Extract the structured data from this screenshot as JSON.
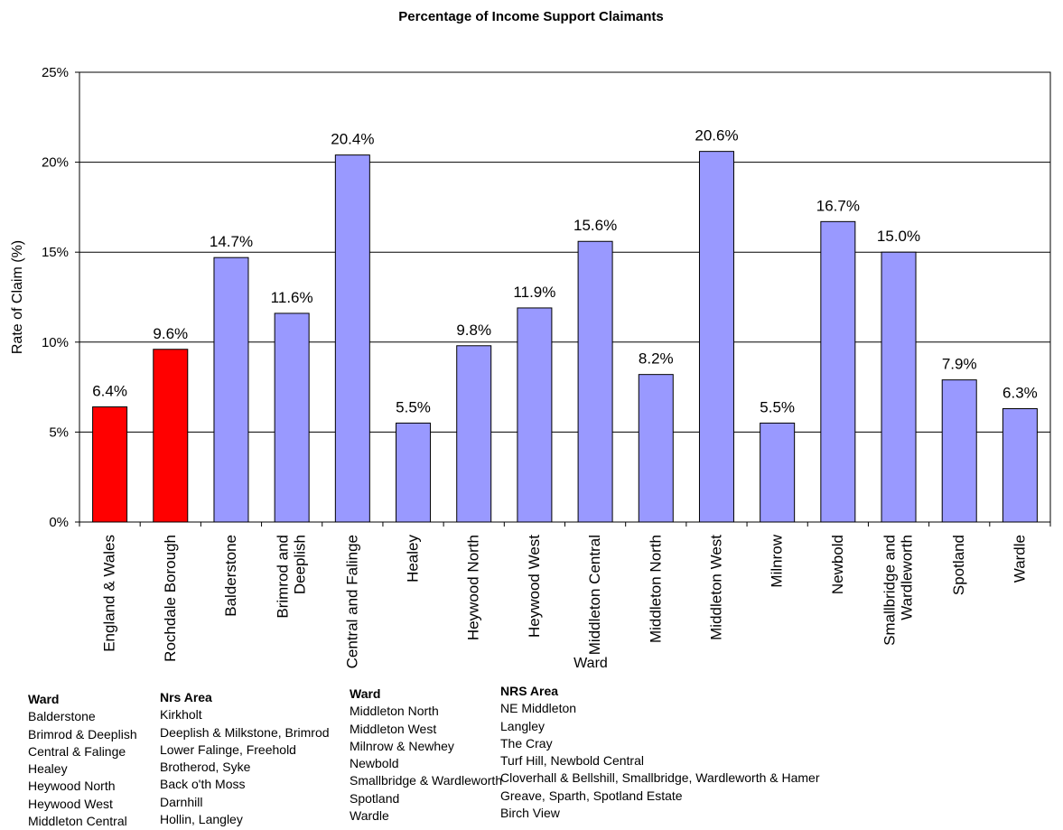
{
  "chart_data": {
    "type": "bar",
    "title": "Percentage of Income Support Claimants",
    "xlabel": "Ward",
    "ylabel": "Rate of Claim (%)",
    "ylim": [
      0,
      25
    ],
    "yticks": [
      "0%",
      "5%",
      "10%",
      "15%",
      "20%",
      "25%"
    ],
    "grid": true,
    "categories": [
      "England & Wales",
      "Rochdale Borough",
      "Balderstone",
      "Brimrod and Deeplish",
      "Central and Falinge",
      "Healey",
      "Heywood North",
      "Heywood West",
      "Middleton Central",
      "Middleton North",
      "Middleton West",
      "Milnrow",
      "Newbold",
      "Smallbridge and Wardleworth",
      "Spotland",
      "Wardle"
    ],
    "category_lines": [
      [
        "England & Wales"
      ],
      [
        "Rochdale Borough"
      ],
      [
        "Balderstone"
      ],
      [
        "Brimrod and",
        "Deeplish"
      ],
      [
        "Central and Falinge"
      ],
      [
        "Healey"
      ],
      [
        "Heywood North"
      ],
      [
        "Heywood West"
      ],
      [
        "Middleton Central"
      ],
      [
        "Middleton North"
      ],
      [
        "Middleton West"
      ],
      [
        "Milnrow"
      ],
      [
        "Newbold"
      ],
      [
        "Smallbridge and",
        "Wardleworth"
      ],
      [
        "Spotland"
      ],
      [
        "Wardle"
      ]
    ],
    "values": [
      6.4,
      9.6,
      14.7,
      11.6,
      20.4,
      5.5,
      9.8,
      11.9,
      15.6,
      8.2,
      20.6,
      5.5,
      16.7,
      15.0,
      7.9,
      6.3
    ],
    "labels": [
      "6.4%",
      "9.6%",
      "14.7%",
      "11.6%",
      "20.4%",
      "5.5%",
      "9.8%",
      "11.9%",
      "15.6%",
      "8.2%",
      "20.6%",
      "5.5%",
      "16.7%",
      "15.0%",
      "7.9%",
      "6.3%"
    ],
    "highlight": [
      true,
      true,
      false,
      false,
      false,
      false,
      false,
      false,
      false,
      false,
      false,
      false,
      false,
      false,
      false,
      false
    ],
    "colors": {
      "highlight": "#ff0000",
      "bar": "#9999ff",
      "outline": "#000000"
    }
  },
  "footnote": {
    "left": {
      "ward_header": "Ward",
      "area_header": "Nrs Area",
      "rows": [
        {
          "ward": "Balderstone",
          "area": "Kirkholt"
        },
        {
          "ward": "Brimrod & Deeplish",
          "area": "Deeplish & Milkstone, Brimrod"
        },
        {
          "ward": "Central & Falinge",
          "area": "Lower Falinge, Freehold"
        },
        {
          "ward": "Healey",
          "area": "Brotherod, Syke"
        },
        {
          "ward": "Heywood North",
          "area": "Back o'th Moss"
        },
        {
          "ward": "Heywood West",
          "area": "Darnhill"
        },
        {
          "ward": "Middleton Central",
          "area": "Hollin, Langley"
        }
      ]
    },
    "right": {
      "ward_header": "Ward",
      "area_header": "NRS Area",
      "rows": [
        {
          "ward": "Middleton North",
          "area": "NE Middleton"
        },
        {
          "ward": "Middleton West",
          "area": "Langley"
        },
        {
          "ward": "Milnrow & Newhey",
          "area": "The Cray"
        },
        {
          "ward": "Newbold",
          "area": "Turf Hill, Newbold Central"
        },
        {
          "ward": "Smallbridge & Wardleworth",
          "area": "Cloverhall & Bellshill, Smallbridge, Wardleworth & Hamer"
        },
        {
          "ward": "Spotland",
          "area": "Greave, Sparth, Spotland Estate"
        },
        {
          "ward": "Wardle",
          "area": "Birch View"
        }
      ]
    }
  }
}
